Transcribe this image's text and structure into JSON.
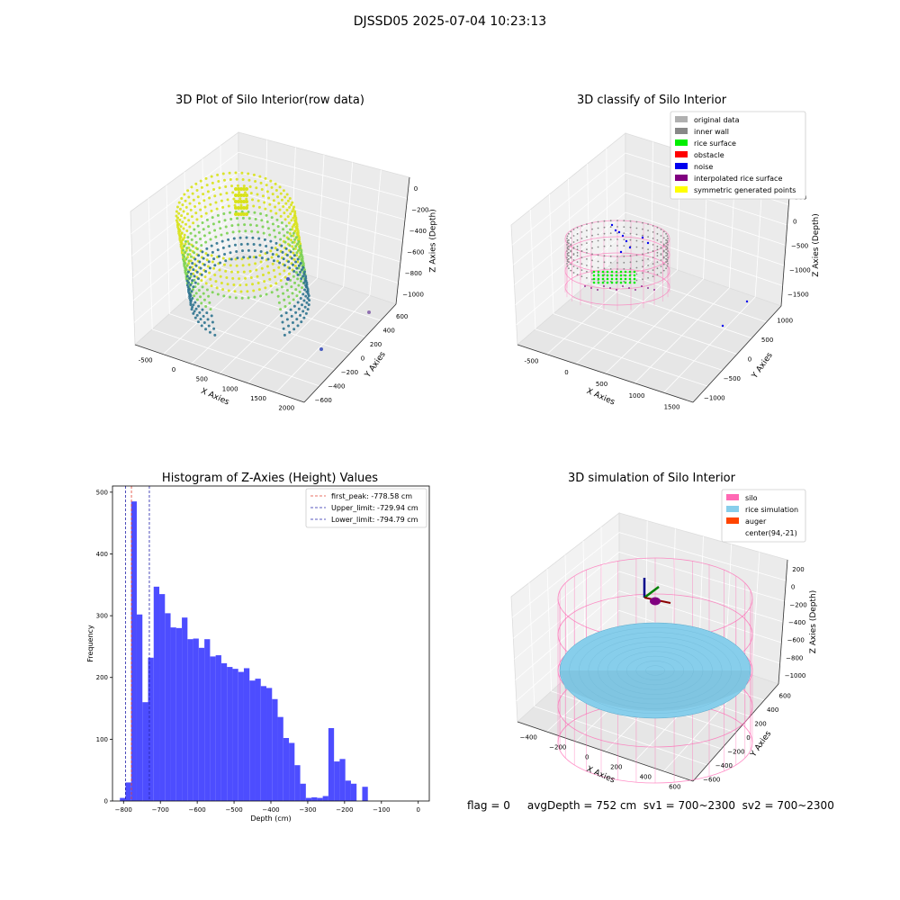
{
  "figure": {
    "title": "DJSSD05 2025-07-04 10:23:13",
    "status_text": "flag = 0     avgDepth = 752 cm  sv1 = 700~2300  sv2 = 700~2300"
  },
  "colors": {
    "hist_bar": "#4d4dff",
    "first_peak": "#e34234",
    "limits": "#2222aa",
    "inner_wall": "#888888",
    "original": "#b0b0b0",
    "rice_surface": "#00ee00",
    "obstacle": "#ff0000",
    "noise": "#0000ee",
    "interpolated": "#800080",
    "symmetric": "#ffff00",
    "silo": "#ff69b4",
    "rice_sim": "#87ceeb",
    "auger": "#ff4500",
    "viridis_low": "#2c728e",
    "viridis_high": "#d8e219"
  },
  "chart_data": [
    {
      "type": "scatter3d",
      "title": "3D Plot of Silo Interior(row data)",
      "xlabel": "X Axies",
      "ylabel": "Y Axies",
      "zlabel": "Z Axies (Depth)",
      "x_ticks": [
        "-500",
        "0",
        "500",
        "1000",
        "1500",
        "2000"
      ],
      "y_ticks": [
        "600",
        "400",
        "200",
        "0",
        "−200",
        "−400",
        "−600"
      ],
      "z_ticks": [
        "0",
        "−200",
        "−400",
        "−600",
        "−800",
        "−1000"
      ],
      "xlim": [
        -600,
        2050
      ],
      "ylim": [
        -700,
        700
      ],
      "zlim": [
        -1100,
        50
      ],
      "colormap": "viridis",
      "points_description_values": {
        "outlier_points": [
          {
            "x": 1850,
            "y": 300,
            "z": -1050
          },
          {
            "x": 1700,
            "y": -200,
            "z": -1050
          },
          {
            "x": 900,
            "y": -100,
            "z": -1000
          }
        ]
      }
    },
    {
      "type": "scatter3d",
      "title": "3D classify of Silo Interior",
      "xlabel": "X Axies",
      "ylabel": "Y Axies",
      "zlabel": "Z Axies (Depth)",
      "x_ticks": [
        "-500",
        "0",
        "500",
        "1000",
        "1500"
      ],
      "y_ticks": [
        "1000",
        "500",
        "0",
        "−500",
        "−1000"
      ],
      "z_ticks": [
        "500",
        "0",
        "−500",
        "−1000",
        "−1500"
      ],
      "legend": [
        {
          "label": "original data",
          "color": "#b0b0b0"
        },
        {
          "label": "inner wall",
          "color": "#888888"
        },
        {
          "label": "rice surface",
          "color": "#00ee00"
        },
        {
          "label": "obstacle",
          "color": "#ff0000"
        },
        {
          "label": "noise",
          "color": "#0000ee"
        },
        {
          "label": "interpolated rice surface",
          "color": "#800080"
        },
        {
          "label": "symmetric generated points",
          "color": "#ffff00"
        }
      ],
      "legend_loc": "top-right"
    },
    {
      "type": "bar",
      "title": "Histogram of Z-Axies (Height) Values",
      "xlabel": "Depth (cm)",
      "ylabel": "Frequency",
      "xlim": [
        -830,
        30
      ],
      "ylim": [
        0,
        510
      ],
      "x_ticks": [
        -800,
        -700,
        -600,
        -500,
        -400,
        -300,
        -200,
        -100,
        0
      ],
      "y_ticks": [
        0,
        100,
        200,
        300,
        400,
        500
      ],
      "bin_start": -810,
      "bin_width": 15.3,
      "values": [
        5,
        30,
        485,
        302,
        160,
        232,
        347,
        335,
        304,
        281,
        280,
        297,
        262,
        263,
        248,
        262,
        234,
        236,
        223,
        217,
        214,
        209,
        215,
        195,
        198,
        186,
        183,
        165,
        136,
        102,
        94,
        58,
        28,
        5,
        6,
        5,
        8,
        118,
        64,
        68,
        33,
        28,
        0,
        23
      ],
      "vlines": [
        {
          "label": "first_peak: -778.58 cm",
          "x": -778.58,
          "color": "#e34234"
        },
        {
          "label": "Upper_limit: -729.94 cm",
          "x": -729.94,
          "color": "#2222aa"
        },
        {
          "label": "Lower_limit: -794.79 cm",
          "x": -794.79,
          "color": "#2222aa"
        }
      ],
      "legend_loc": "top-right"
    },
    {
      "type": "surface3d",
      "title": "3D simulation of Silo Interior",
      "xlabel": "X Axies",
      "ylabel": "Y Axies",
      "zlabel": "Z Axies (Depth)",
      "x_ticks": [
        "−400",
        "−200",
        "0",
        "200",
        "400",
        "600"
      ],
      "y_ticks": [
        "600",
        "400",
        "200",
        "0",
        "−200",
        "−400",
        "−600"
      ],
      "z_ticks": [
        "200",
        "0",
        "−200",
        "−400",
        "−600",
        "−800",
        "−1000"
      ],
      "legend": [
        {
          "label": "silo",
          "color": "#ff69b4"
        },
        {
          "label": "rice simulation",
          "color": "#87ceeb"
        },
        {
          "label": "auger",
          "color": "#ff4500"
        },
        {
          "label": "center(94,-21)",
          "color": ""
        }
      ],
      "legend_loc": "top-right",
      "center": [
        94,
        -21
      ]
    }
  ]
}
